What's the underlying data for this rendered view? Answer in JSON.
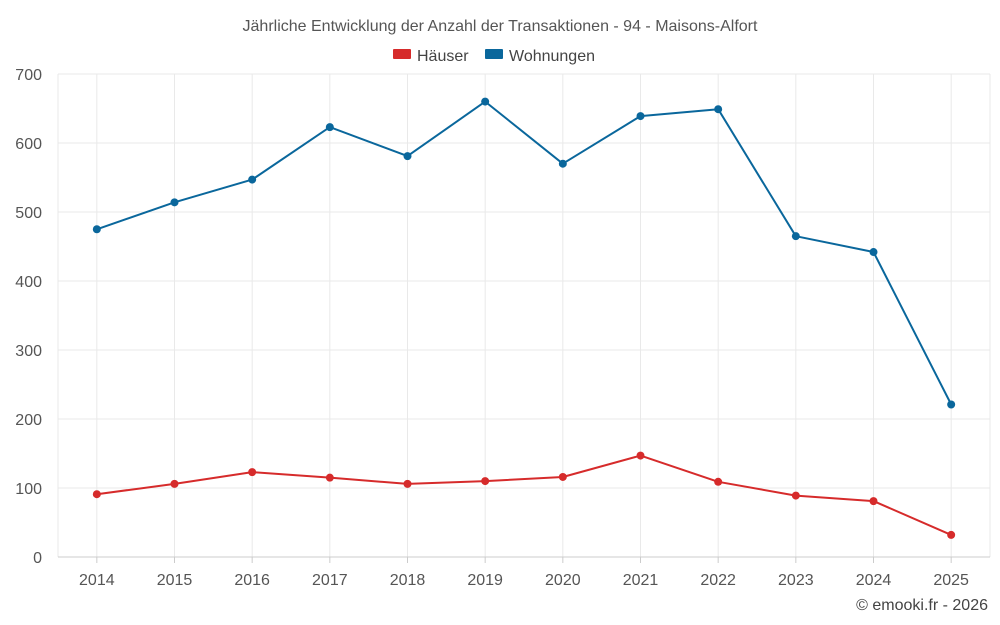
{
  "chart_data": {
    "type": "line",
    "title": "Jährliche Entwicklung der Anzahl der Transaktionen - 94 - Maisons-Alfort",
    "categories": [
      "2014",
      "2015",
      "2016",
      "2017",
      "2018",
      "2019",
      "2020",
      "2021",
      "2022",
      "2023",
      "2024",
      "2025"
    ],
    "series": [
      {
        "name": "Häuser",
        "color": "#d62b2b",
        "values": [
          91,
          106,
          123,
          115,
          106,
          110,
          116,
          147,
          109,
          89,
          81,
          32
        ]
      },
      {
        "name": "Wohnungen",
        "color": "#0a679c",
        "values": [
          475,
          514,
          547,
          623,
          581,
          660,
          570,
          639,
          649,
          465,
          442,
          221
        ]
      }
    ],
    "yticks": [
      0,
      100,
      200,
      300,
      400,
      500,
      600,
      700
    ],
    "ylim": [
      0,
      700
    ],
    "xlabel": "",
    "ylabel": "",
    "grid": true,
    "legend_position": "top-center"
  },
  "credit": "© emooki.fr - 2026"
}
